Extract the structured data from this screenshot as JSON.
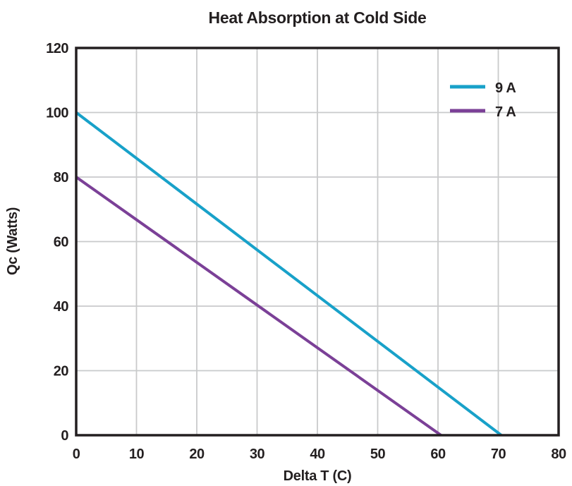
{
  "chart_data": {
    "type": "line",
    "title": "Heat Absorption at Cold Side",
    "xlabel": "Delta T (C)",
    "ylabel": "Qc (Watts)",
    "xlim": [
      0,
      80
    ],
    "ylim": [
      0,
      120
    ],
    "x_ticks": [
      0,
      10,
      20,
      30,
      40,
      50,
      60,
      70,
      80
    ],
    "y_ticks": [
      0,
      20,
      40,
      60,
      80,
      100,
      120
    ],
    "grid": true,
    "legend_position": "top-right",
    "series": [
      {
        "name": "9 A",
        "color": "#18A1C9",
        "points": [
          [
            0,
            100
          ],
          [
            70.5,
            0
          ]
        ]
      },
      {
        "name": "7 A",
        "color": "#7B4097",
        "points": [
          [
            0,
            80
          ],
          [
            60.5,
            0
          ]
        ]
      }
    ]
  },
  "colors": {
    "text": "#231F20",
    "axis_border": "#231F20",
    "grid": "#C9CACB",
    "background": "#FFFFFF"
  }
}
